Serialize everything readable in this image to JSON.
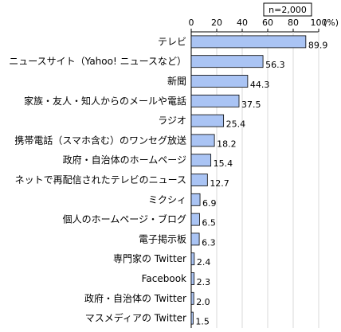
{
  "chart_data": {
    "type": "bar",
    "orientation": "horizontal",
    "sample_note": "n=2,000",
    "unit_label": "(%)",
    "xlim": [
      0,
      100
    ],
    "ticks": [
      0,
      20,
      40,
      60,
      80,
      100
    ],
    "grid": true,
    "bar_color": "#aac4f4",
    "bar_stroke": "#000000",
    "categories": [
      "テレビ",
      "ニュースサイト（Yahoo! ニュースなど）",
      "新聞",
      "家族・友人・知人からのメールや電話",
      "ラジオ",
      "携帯電話（スマホ含む）のワンセグ放送",
      "政府・自治体のホームページ",
      "ネットで再配信されたテレビのニュース",
      "ミクシィ",
      "個人のホームページ・ブログ",
      "電子掲示板",
      "専門家の Twitter",
      "Facebook",
      "政府・自治体の Twitter",
      "マスメディアの Twitter"
    ],
    "values": [
      89.9,
      56.3,
      44.3,
      37.5,
      25.4,
      18.2,
      15.4,
      12.7,
      6.9,
      6.5,
      6.3,
      2.4,
      2.3,
      2.0,
      1.5
    ],
    "value_labels": [
      "89.9",
      "56.3",
      "44.3",
      "37.5",
      "25.4",
      "18.2",
      "15.4",
      "12.7",
      "6.9",
      "6.5",
      "6.3",
      "2.4",
      "2.3",
      "2.0",
      "1.5"
    ]
  }
}
